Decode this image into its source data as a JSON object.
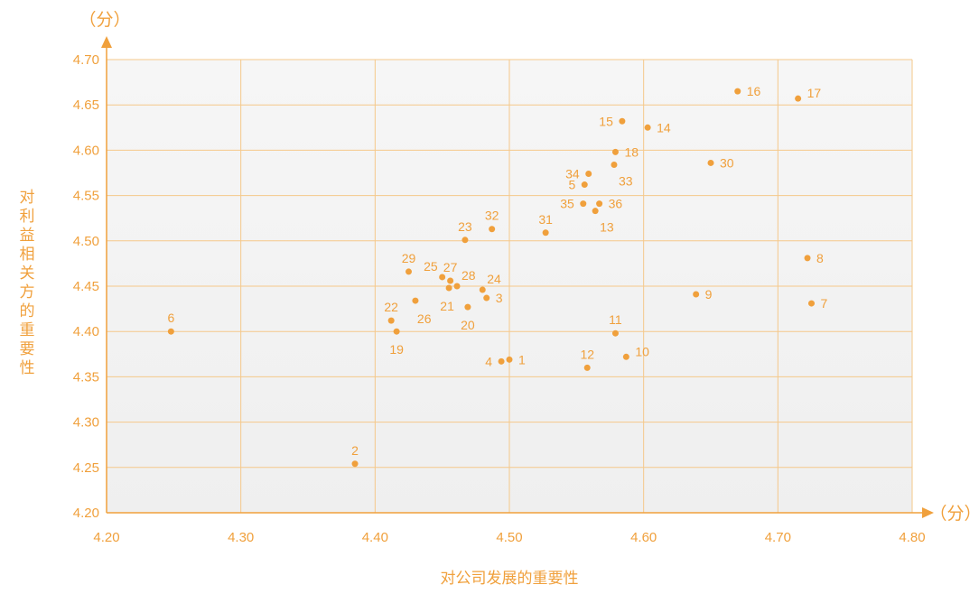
{
  "chart_data": {
    "type": "scatter",
    "xlabel": "对公司发展的重要性",
    "ylabel": "对利益相关方的重要性",
    "x_unit": "（分）",
    "y_unit": "（分）",
    "xlim": [
      4.2,
      4.8
    ],
    "ylim": [
      4.2,
      4.7
    ],
    "x_ticks": [
      "4.20",
      "4.30",
      "4.40",
      "4.50",
      "4.60",
      "4.70",
      "4.80"
    ],
    "y_ticks": [
      "4.20",
      "4.25",
      "4.30",
      "4.35",
      "4.40",
      "4.45",
      "4.50",
      "4.55",
      "4.60",
      "4.65",
      "4.70"
    ],
    "grid": true,
    "colors": {
      "accent": "#f0a03c",
      "grid": "#f5c88a",
      "plot_bg": "#f5f5f5"
    },
    "points": [
      {
        "label": "1",
        "x": 4.5,
        "y": 4.369,
        "pos": "right"
      },
      {
        "label": "2",
        "x": 4.385,
        "y": 4.254,
        "pos": "top"
      },
      {
        "label": "3",
        "x": 4.483,
        "y": 4.437,
        "pos": "right"
      },
      {
        "label": "4",
        "x": 4.494,
        "y": 4.367,
        "pos": "left"
      },
      {
        "label": "5",
        "x": 4.556,
        "y": 4.562,
        "pos": "left"
      },
      {
        "label": "6",
        "x": 4.248,
        "y": 4.4,
        "pos": "top"
      },
      {
        "label": "7",
        "x": 4.725,
        "y": 4.431,
        "pos": "right"
      },
      {
        "label": "8",
        "x": 4.722,
        "y": 4.481,
        "pos": "right"
      },
      {
        "label": "9",
        "x": 4.639,
        "y": 4.441,
        "pos": "right"
      },
      {
        "label": "10",
        "x": 4.587,
        "y": 4.372,
        "pos": "rightup"
      },
      {
        "label": "11",
        "x": 4.579,
        "y": 4.398,
        "pos": "top"
      },
      {
        "label": "12",
        "x": 4.558,
        "y": 4.36,
        "pos": "top"
      },
      {
        "label": "13",
        "x": 4.564,
        "y": 4.533,
        "pos": "rightdown"
      },
      {
        "label": "14",
        "x": 4.603,
        "y": 4.625,
        "pos": "right"
      },
      {
        "label": "15",
        "x": 4.584,
        "y": 4.632,
        "pos": "left"
      },
      {
        "label": "16",
        "x": 4.67,
        "y": 4.665,
        "pos": "right"
      },
      {
        "label": "17",
        "x": 4.715,
        "y": 4.657,
        "pos": "rightup"
      },
      {
        "label": "18",
        "x": 4.579,
        "y": 4.598,
        "pos": "right"
      },
      {
        "label": "19",
        "x": 4.416,
        "y": 4.4,
        "pos": "below"
      },
      {
        "label": "20",
        "x": 4.469,
        "y": 4.427,
        "pos": "below"
      },
      {
        "label": "21",
        "x": 4.455,
        "y": 4.448,
        "pos": "belowleft"
      },
      {
        "label": "22",
        "x": 4.412,
        "y": 4.412,
        "pos": "top"
      },
      {
        "label": "23",
        "x": 4.467,
        "y": 4.501,
        "pos": "top"
      },
      {
        "label": "24",
        "x": 4.48,
        "y": 4.446,
        "pos": "topright"
      },
      {
        "label": "25",
        "x": 4.45,
        "y": 4.46,
        "pos": "topleft"
      },
      {
        "label": "26",
        "x": 4.43,
        "y": 4.434,
        "pos": "belowright"
      },
      {
        "label": "27",
        "x": 4.456,
        "y": 4.456,
        "pos": "top"
      },
      {
        "label": "28",
        "x": 4.461,
        "y": 4.45,
        "pos": "topright"
      },
      {
        "label": "29",
        "x": 4.425,
        "y": 4.466,
        "pos": "top"
      },
      {
        "label": "30",
        "x": 4.65,
        "y": 4.586,
        "pos": "right"
      },
      {
        "label": "31",
        "x": 4.527,
        "y": 4.509,
        "pos": "top"
      },
      {
        "label": "32",
        "x": 4.487,
        "y": 4.513,
        "pos": "top"
      },
      {
        "label": "33",
        "x": 4.578,
        "y": 4.584,
        "pos": "rightdown"
      },
      {
        "label": "34",
        "x": 4.559,
        "y": 4.574,
        "pos": "left"
      },
      {
        "label": "35",
        "x": 4.555,
        "y": 4.541,
        "pos": "left"
      },
      {
        "label": "36",
        "x": 4.567,
        "y": 4.541,
        "pos": "right"
      }
    ]
  }
}
